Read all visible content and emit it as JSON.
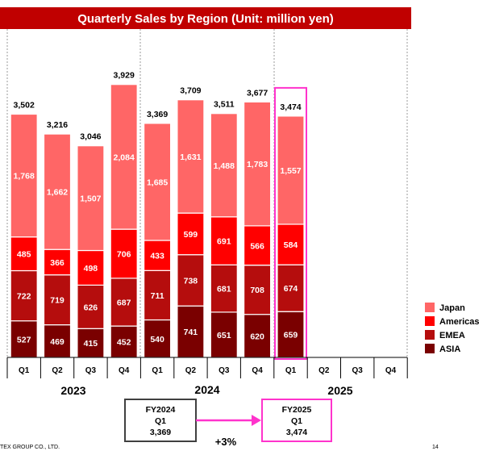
{
  "chart_data": {
    "type": "bar",
    "stacked": true,
    "title": "Quarterly Sales by Region (Unit: million yen)",
    "categories": [
      "Q1",
      "Q2",
      "Q3",
      "Q4",
      "Q1",
      "Q2",
      "Q3",
      "Q4",
      "Q1",
      "Q2",
      "Q3",
      "Q4"
    ],
    "years": [
      {
        "label": "2023"
      },
      {
        "label": "2024"
      },
      {
        "label": "2025"
      }
    ],
    "series": [
      {
        "name": "ASIA",
        "color": "#7a0000",
        "values": [
          527,
          469,
          415,
          452,
          540,
          741,
          651,
          620,
          659,
          null,
          null,
          null
        ]
      },
      {
        "name": "EMEA",
        "color": "#b50d0d",
        "values": [
          722,
          719,
          626,
          687,
          711,
          738,
          681,
          708,
          674,
          null,
          null,
          null
        ]
      },
      {
        "name": "Americas",
        "color": "#ff0000",
        "values": [
          485,
          366,
          498,
          706,
          433,
          599,
          691,
          566,
          584,
          null,
          null,
          null
        ]
      },
      {
        "name": "Japan",
        "color": "#ff6666",
        "values": [
          1768,
          1662,
          1507,
          2084,
          1685,
          1631,
          1488,
          1783,
          1557,
          null,
          null,
          null
        ]
      }
    ],
    "totals": [
      3502,
      3216,
      3046,
      3929,
      3369,
      3709,
      3511,
      3677,
      3474,
      null,
      null,
      null
    ],
    "value_labels": {
      "ASIA": [
        "527",
        "469",
        "415",
        "452",
        "540",
        "741",
        "651",
        "620",
        "659"
      ],
      "EMEA": [
        "722",
        "719",
        "626",
        "687",
        "711",
        "738",
        "681",
        "708",
        "674"
      ],
      "Americas": [
        "485",
        "366",
        "498",
        "706",
        "433",
        "599",
        "691",
        "566",
        "584"
      ],
      "Japan": [
        "1,768",
        "1,662",
        "1,507",
        "2,084",
        "1,685",
        "1,631",
        "1,488",
        "1,783",
        "1,557"
      ]
    },
    "total_labels": [
      "3,502",
      "3,216",
      "3,046",
      "3,929",
      "3,369",
      "3,709",
      "3,511",
      "3,677",
      "3,474"
    ],
    "highlight_index": 8,
    "legend": {
      "position": "right",
      "items": [
        "Japan",
        "Americas",
        "EMEA",
        "ASIA"
      ]
    },
    "grid": false
  },
  "comparison": {
    "left": {
      "line1": "FY2024",
      "line2": "Q1",
      "line3": "3,369"
    },
    "right": {
      "line1": "FY2025",
      "line2": "Q1",
      "line3": "3,474"
    },
    "change": "+3%"
  },
  "footer": {
    "company": "TEX GROUP CO., LTD.",
    "page": "14"
  },
  "colors": {
    "title_bar": "#c00000",
    "highlight": "#ff33cc",
    "arrow": "#ff33cc",
    "box_dark": "#404040"
  }
}
